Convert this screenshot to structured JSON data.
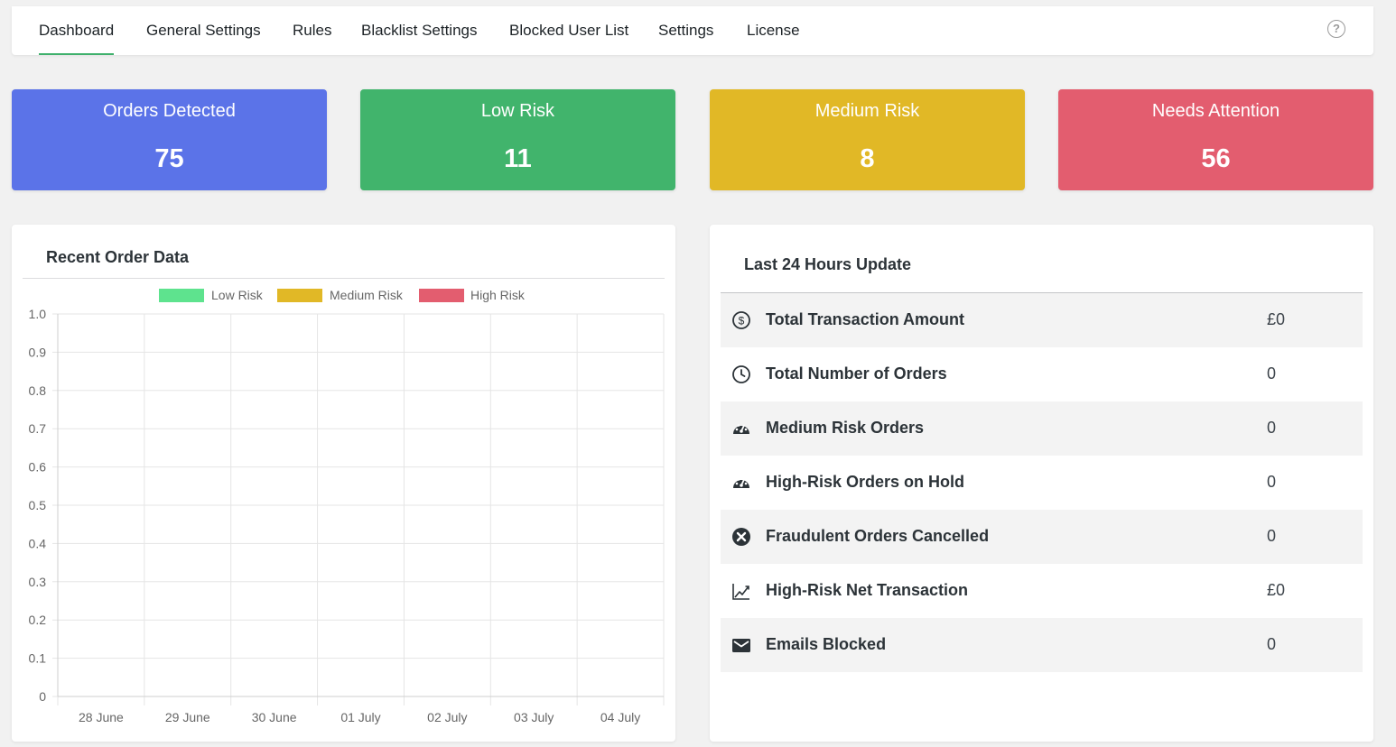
{
  "nav": {
    "tabs": [
      "Dashboard",
      "General Settings",
      "Rules",
      "Blacklist Settings",
      "Blocked User List",
      "Settings",
      "License"
    ],
    "active": "Dashboard",
    "help_icon": "?"
  },
  "cards": [
    {
      "label": "Orders Detected",
      "value": "75",
      "color": "#5b73e8"
    },
    {
      "label": "Low Risk",
      "value": "11",
      "color": "#41b46c"
    },
    {
      "label": "Medium Risk",
      "value": "8",
      "color": "#e1b826"
    },
    {
      "label": "Needs Attention",
      "value": "56",
      "color": "#e35d6f"
    }
  ],
  "recent": {
    "title": "Recent Order Data"
  },
  "chart_data": {
    "type": "line",
    "title": "",
    "categories": [
      "28 June",
      "29 June",
      "30 June",
      "01 July",
      "02 July",
      "03 July",
      "04 July"
    ],
    "series": [
      {
        "name": "Low Risk",
        "color": "#5ee38e",
        "values": [
          0,
          0,
          0,
          0,
          0,
          0,
          0
        ]
      },
      {
        "name": "Medium Risk",
        "color": "#e1b826",
        "values": [
          0,
          0,
          0,
          0,
          0,
          0,
          0
        ]
      },
      {
        "name": "High Risk",
        "color": "#e35d6f",
        "values": [
          0,
          0,
          0,
          0,
          0,
          0,
          0
        ]
      }
    ],
    "ylim": [
      0,
      1.0
    ],
    "yticks": [
      "0",
      "0.1",
      "0.2",
      "0.3",
      "0.4",
      "0.5",
      "0.6",
      "0.7",
      "0.8",
      "0.9",
      "1.0"
    ],
    "grid": true,
    "legend": "top-center"
  },
  "last24": {
    "title": "Last 24 Hours Update",
    "rows": [
      {
        "icon": "dollar-circle-icon",
        "label": "Total Transaction Amount",
        "value": "£0"
      },
      {
        "icon": "clock-icon",
        "label": "Total Number of Orders",
        "value": "0"
      },
      {
        "icon": "gauge-icon",
        "label": "Medium Risk Orders",
        "value": "0"
      },
      {
        "icon": "gauge-icon",
        "label": "High-Risk Orders on Hold",
        "value": "0"
      },
      {
        "icon": "x-circle-icon",
        "label": "Fraudulent Orders Cancelled",
        "value": "0"
      },
      {
        "icon": "trend-chart-icon",
        "label": "High-Risk Net Transaction",
        "value": "£0"
      },
      {
        "icon": "envelope-icon",
        "label": "Emails Blocked",
        "value": "0"
      }
    ]
  }
}
